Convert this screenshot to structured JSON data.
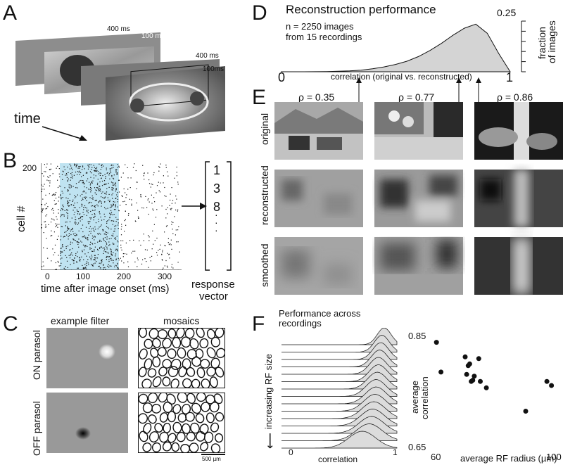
{
  "panels": {
    "A": {
      "label": "A",
      "frame_durations": [
        "400 ms",
        "100 ms",
        "400 ms",
        "100ms"
      ],
      "time_label": "time"
    },
    "B": {
      "label": "B",
      "ylabel": "cell #",
      "ytick_top": "200",
      "xlabel": "time after image onset (ms)",
      "xticks": [
        "0",
        "100",
        "200",
        "300"
      ],
      "vector_values": [
        "1",
        "3",
        "8",
        "·",
        "·",
        "·"
      ],
      "vector_label_line1": "response",
      "vector_label_line2": "vector"
    },
    "C": {
      "label": "C",
      "col1_title": "example filter",
      "col2_title": "mosaics",
      "row1_label": "ON parasol",
      "row2_label": "OFF parasol",
      "scalebar_label": "500 µm"
    },
    "D": {
      "label": "D",
      "title": "Reconstruction performance",
      "note_line1": "n = 2250 images",
      "note_line2": "from 15 recordings",
      "xlabel": "correlation (original vs. reconstructed)",
      "ylabel_line1": "fraction",
      "ylabel_line2": "of images",
      "ytick_top": "0.25"
    },
    "E": {
      "label": "E",
      "rho": [
        "ρ = 0.35",
        "ρ = 0.77",
        "ρ = 0.86"
      ],
      "rows": [
        "original",
        "reconstructed",
        "smoothed"
      ]
    },
    "F": {
      "label": "F",
      "left_title_line1": "Performance across",
      "left_title_line2": "recordings",
      "left_ylabel": "increasing RF size",
      "left_arrow": "⟵",
      "left_xlabel": "correlation",
      "left_xticks": [
        "0",
        "1"
      ],
      "right_xlabel": "average RF radius (µm)",
      "right_ylabel_line1": "average",
      "right_ylabel_line2": "correlation"
    }
  },
  "chart_data": [
    {
      "type": "area",
      "title": "Reconstruction performance",
      "xlabel": "correlation (original vs. reconstructed)",
      "ylabel": "fraction of images",
      "xlim": [
        0,
        1
      ],
      "ylim": [
        0,
        0.25
      ],
      "xticks": [
        0,
        1
      ],
      "x": [
        0.0,
        0.1,
        0.2,
        0.3,
        0.35,
        0.4,
        0.45,
        0.5,
        0.55,
        0.6,
        0.65,
        0.7,
        0.75,
        0.8,
        0.85,
        0.9,
        0.95,
        1.0
      ],
      "values": [
        0.0,
        0.0,
        0.001,
        0.004,
        0.008,
        0.015,
        0.024,
        0.036,
        0.052,
        0.075,
        0.105,
        0.14,
        0.18,
        0.215,
        0.235,
        0.19,
        0.09,
        0.0
      ]
    },
    {
      "type": "scatter",
      "xlabel": "average RF radius (µm)",
      "ylabel": "average correlation",
      "xlim": [
        60,
        100
      ],
      "ylim": [
        0.65,
        0.85
      ],
      "xticks": [
        60,
        100
      ],
      "yticks": [
        0.65,
        0.85
      ],
      "x": [
        60.5,
        62,
        70,
        70.5,
        71,
        71.5,
        72,
        72.5,
        73,
        74.5,
        75,
        77,
        90,
        97,
        98.5
      ],
      "y": [
        0.83,
        0.779,
        0.805,
        0.775,
        0.79,
        0.793,
        0.763,
        0.765,
        0.772,
        0.802,
        0.763,
        0.752,
        0.712,
        0.763,
        0.756
      ]
    },
    {
      "type": "area",
      "title": "Performance across recordings",
      "xlabel": "correlation",
      "ylabel": "increasing RF size",
      "xlim": [
        0,
        1
      ],
      "xticks": [
        0,
        1
      ],
      "series_count": 15,
      "peak_x": [
        0.89,
        0.87,
        0.86,
        0.85,
        0.84,
        0.84,
        0.83,
        0.82,
        0.82,
        0.81,
        0.8,
        0.79,
        0.78,
        0.76,
        0.7
      ]
    }
  ]
}
